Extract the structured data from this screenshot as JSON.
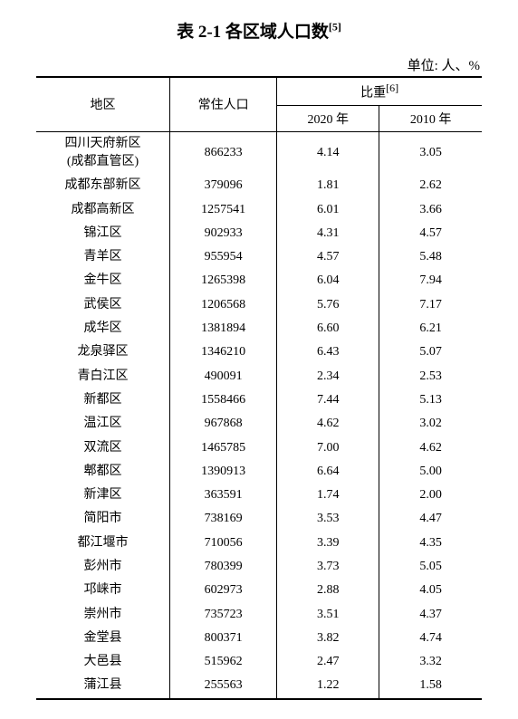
{
  "title": "表 2-1 各区域人口数",
  "title_sup": "[5]",
  "unit_label": "单位: 人、%",
  "headers": {
    "region": "地区",
    "population": "常住人口",
    "ratio": "比重",
    "ratio_sup": "[6]",
    "year2020": "2020 年",
    "year2010": "2010 年"
  },
  "rows": [
    {
      "region": "四川天府新区",
      "region_sub": "(成都直管区)",
      "pop": "866233",
      "y2020": "4.14",
      "y2010": "3.05"
    },
    {
      "region": "成都东部新区",
      "pop": "379096",
      "y2020": "1.81",
      "y2010": "2.62"
    },
    {
      "region": "成都高新区",
      "pop": "1257541",
      "y2020": "6.01",
      "y2010": "3.66"
    },
    {
      "region": "锦江区",
      "pop": "902933",
      "y2020": "4.31",
      "y2010": "4.57"
    },
    {
      "region": "青羊区",
      "pop": "955954",
      "y2020": "4.57",
      "y2010": "5.48"
    },
    {
      "region": "金牛区",
      "pop": "1265398",
      "y2020": "6.04",
      "y2010": "7.94"
    },
    {
      "region": "武侯区",
      "pop": "1206568",
      "y2020": "5.76",
      "y2010": "7.17"
    },
    {
      "region": "成华区",
      "pop": "1381894",
      "y2020": "6.60",
      "y2010": "6.21"
    },
    {
      "region": "龙泉驿区",
      "pop": "1346210",
      "y2020": "6.43",
      "y2010": "5.07"
    },
    {
      "region": "青白江区",
      "pop": "490091",
      "y2020": "2.34",
      "y2010": "2.53"
    },
    {
      "region": "新都区",
      "pop": "1558466",
      "y2020": "7.44",
      "y2010": "5.13"
    },
    {
      "region": "温江区",
      "pop": "967868",
      "y2020": "4.62",
      "y2010": "3.02"
    },
    {
      "region": "双流区",
      "pop": "1465785",
      "y2020": "7.00",
      "y2010": "4.62"
    },
    {
      "region": "郫都区",
      "pop": "1390913",
      "y2020": "6.64",
      "y2010": "5.00"
    },
    {
      "region": "新津区",
      "pop": "363591",
      "y2020": "1.74",
      "y2010": "2.00"
    },
    {
      "region": "简阳市",
      "pop": "738169",
      "y2020": "3.53",
      "y2010": "4.47"
    },
    {
      "region": "都江堰市",
      "pop": "710056",
      "y2020": "3.39",
      "y2010": "4.35"
    },
    {
      "region": "彭州市",
      "pop": "780399",
      "y2020": "3.73",
      "y2010": "5.05"
    },
    {
      "region": "邛崃市",
      "pop": "602973",
      "y2020": "2.88",
      "y2010": "4.05"
    },
    {
      "region": "崇州市",
      "pop": "735723",
      "y2020": "3.51",
      "y2010": "4.37"
    },
    {
      "region": "金堂县",
      "pop": "800371",
      "y2020": "3.82",
      "y2010": "4.74"
    },
    {
      "region": "大邑县",
      "pop": "515962",
      "y2020": "2.47",
      "y2010": "3.32"
    },
    {
      "region": "蒲江县",
      "pop": "255563",
      "y2020": "1.22",
      "y2010": "1.58"
    }
  ],
  "col_widths": {
    "region": "30%",
    "pop": "24%",
    "y2020": "23%",
    "y2010": "23%"
  }
}
